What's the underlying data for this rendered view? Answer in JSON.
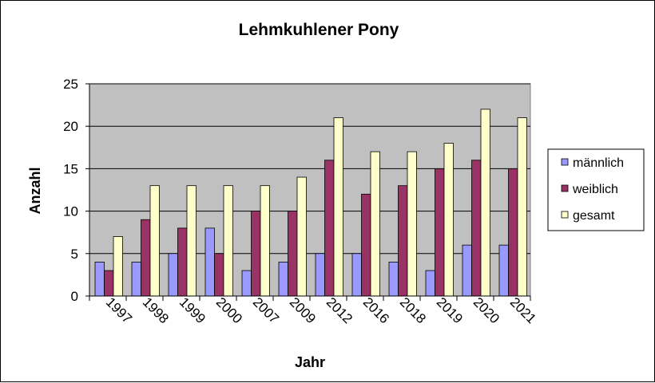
{
  "chart_data": {
    "type": "bar",
    "title": "Lehmkuhlener Pony",
    "xlabel": "Jahr",
    "ylabel": "Anzahl",
    "ylim": [
      0,
      25
    ],
    "yticks": [
      0,
      5,
      10,
      15,
      20,
      25
    ],
    "grid": true,
    "legend_position": "right",
    "categories": [
      "1997",
      "1998",
      "1999",
      "2000",
      "2007",
      "2009",
      "2012",
      "2016",
      "2018",
      "2019",
      "2020",
      "2021"
    ],
    "series": [
      {
        "name": "männlich",
        "color": "#9999FF",
        "values": [
          4,
          4,
          5,
          8,
          3,
          4,
          5,
          5,
          4,
          3,
          6,
          6
        ]
      },
      {
        "name": "weiblich",
        "color": "#993366",
        "values": [
          3,
          9,
          8,
          5,
          10,
          10,
          16,
          12,
          13,
          15,
          16,
          15
        ]
      },
      {
        "name": "gesamt",
        "color": "#FFFFCC",
        "values": [
          7,
          13,
          13,
          13,
          13,
          14,
          21,
          17,
          17,
          18,
          22,
          21
        ]
      }
    ],
    "plot_background": "#C0C0C0"
  }
}
